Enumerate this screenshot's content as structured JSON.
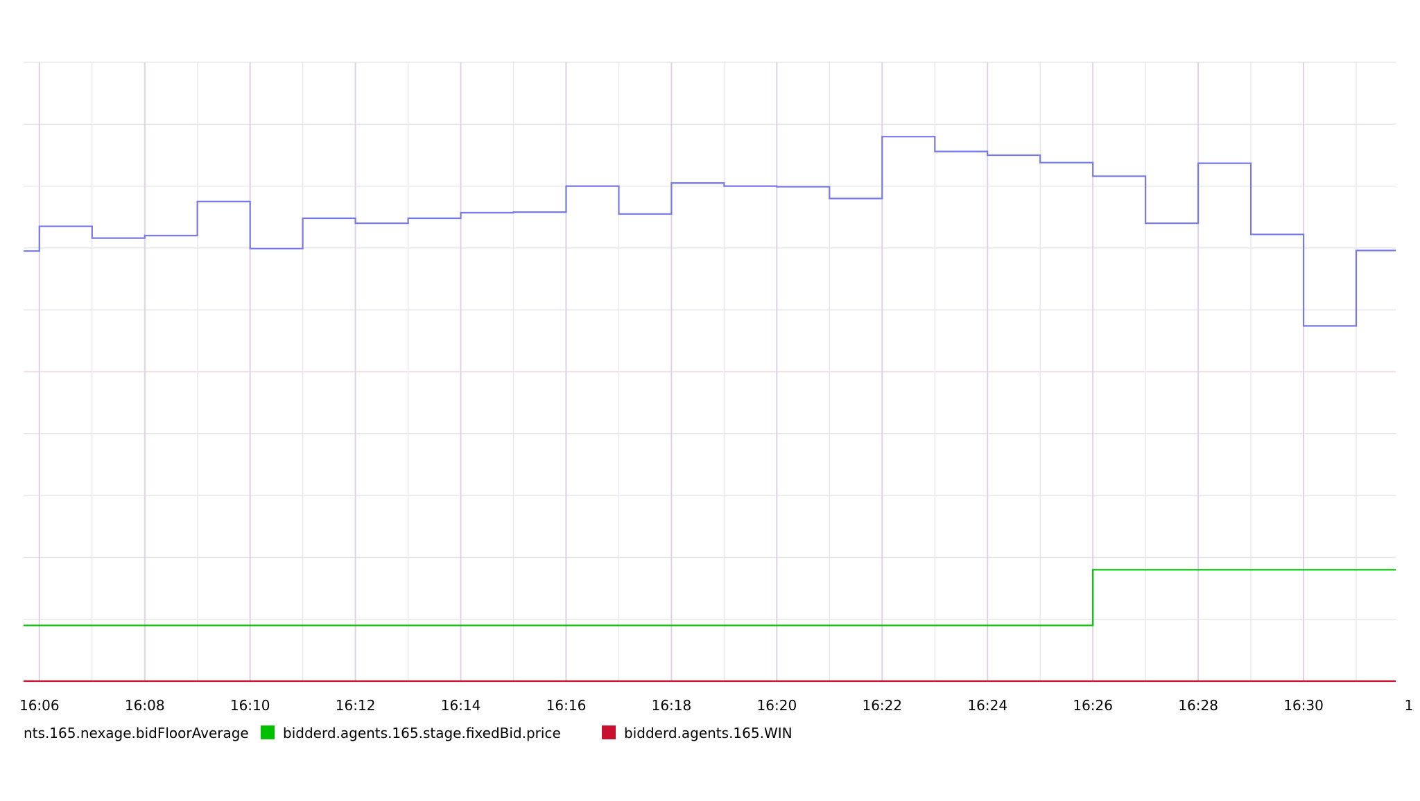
{
  "chart_data": {
    "type": "line",
    "interpolation": "step",
    "x_tick_labels": [
      "16:06",
      "16:08",
      "16:10",
      "16:12",
      "16:14",
      "16:16",
      "16:18",
      "16:20",
      "16:22",
      "16:24",
      "16:26",
      "16:28",
      "16:30",
      "1"
    ],
    "x_tick_minutes": [
      6,
      8,
      10,
      12,
      14,
      16,
      18,
      20,
      22,
      24,
      26,
      28,
      30,
      32
    ],
    "xlim_minutes": [
      5.7,
      31.75
    ],
    "ylim": [
      0,
      10
    ],
    "grid": true,
    "legend_position": "bottom",
    "series": [
      {
        "name": "nts.165.nexage.bidFloorAverage",
        "color": "#7777ee",
        "x_minutes": [
          5.7,
          6,
          7,
          8,
          9,
          10,
          11,
          12,
          13,
          14,
          15,
          16,
          17,
          18,
          19,
          20,
          21,
          22,
          23,
          24,
          25,
          26,
          27,
          28,
          29,
          30,
          31
        ],
        "values": [
          6.95,
          7.35,
          7.16,
          7.2,
          7.75,
          6.99,
          7.48,
          7.4,
          7.48,
          7.57,
          7.58,
          8.0,
          7.55,
          8.05,
          8.0,
          7.99,
          7.8,
          8.8,
          8.56,
          8.5,
          8.38,
          8.16,
          7.4,
          8.37,
          7.22,
          5.74,
          6.96
        ]
      },
      {
        "name": "bidderd.agents.165.stage.fixedBid.price",
        "color": "#00c000",
        "x_minutes": [
          5.7,
          26
        ],
        "values": [
          0.9,
          1.8
        ]
      },
      {
        "name": "bidderd.agents.165.WIN",
        "color": "#c8102e",
        "x_minutes": [
          5.7
        ],
        "values": [
          0
        ]
      }
    ]
  }
}
